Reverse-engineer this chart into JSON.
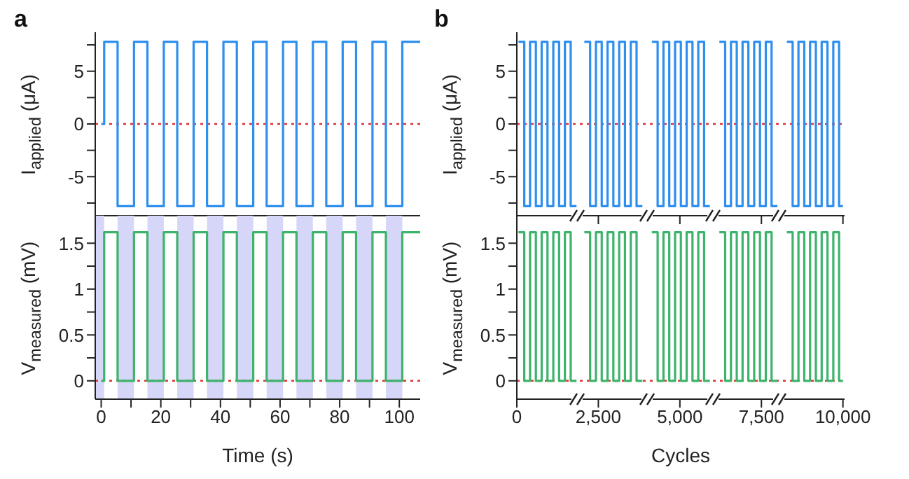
{
  "chart_data": [
    {
      "type": "step",
      "title": "a",
      "ylabel": "I$_{applied}$ (μA)",
      "tick_labels": "y",
      "x": [
        0,
        1,
        5.5,
        11,
        15.5,
        21,
        25.5,
        31,
        35.5,
        41,
        45.5,
        51,
        55.5,
        61,
        65.5,
        71,
        75.5,
        81,
        85.5,
        91,
        95.5,
        101,
        107
      ],
      "series": [
        {
          "color": "#2e8fef",
          "values": [
            0,
            7.8,
            -7.8,
            7.8,
            -7.8,
            7.8,
            -7.8,
            7.8,
            -7.8,
            7.8,
            -7.8,
            7.8,
            -7.8,
            7.8,
            -7.8,
            7.8,
            -7.8,
            7.8,
            -7.8,
            7.8,
            -7.8,
            7.8,
            7.8
          ]
        }
      ],
      "xlim": [
        -2,
        107
      ],
      "xticks": [
        0,
        {
          "value": 10,
          "label": null
        },
        20,
        {
          "value": 30,
          "label": null
        },
        40,
        {
          "value": 50,
          "label": null
        },
        60,
        {
          "value": 70,
          "label": null
        },
        80,
        {
          "value": 90,
          "label": null
        },
        100
      ],
      "ylim": [
        -8.7,
        8.7
      ],
      "yticks": [
        {
          "value": -7.5,
          "label": null
        },
        -5,
        {
          "value": -2.5,
          "label": null
        },
        0,
        {
          "value": 2.5,
          "label": null
        },
        5,
        {
          "value": 7.5,
          "label": null
        }
      ],
      "ref_lines": [
        {
          "axis": "y",
          "value": 0,
          "color": "#e03030",
          "line_style": "dotted"
        }
      ]
    },
    {
      "type": "step",
      "xlabel": "Time (s)",
      "ylabel": "V$_{measured}$ (mV)",
      "x": [
        0,
        1,
        5.5,
        11,
        15.5,
        21,
        25.5,
        31,
        35.5,
        41,
        45.5,
        51,
        55.5,
        61,
        65.5,
        71,
        75.5,
        81,
        85.5,
        91,
        95.5,
        101,
        107
      ],
      "series": [
        {
          "color": "#3db36b",
          "values": [
            0,
            1.62,
            0,
            1.62,
            0,
            1.62,
            0,
            1.62,
            0,
            1.62,
            0,
            1.62,
            0,
            1.62,
            0,
            1.62,
            0,
            1.62,
            0,
            1.62,
            0,
            1.62,
            1.62
          ]
        }
      ],
      "xlim": [
        -2,
        107
      ],
      "xticks": [
        0,
        {
          "value": 10,
          "label": null
        },
        20,
        {
          "value": 30,
          "label": null
        },
        40,
        {
          "value": 50,
          "label": null
        },
        60,
        {
          "value": 70,
          "label": null
        },
        80,
        {
          "value": 90,
          "label": null
        },
        100
      ],
      "ylim": [
        -0.2,
        1.8
      ],
      "yticks": [
        0,
        {
          "value": 0.25,
          "label": null
        },
        0.5,
        {
          "value": 0.75,
          "label": null
        },
        1.0,
        {
          "value": 1.25,
          "label": null
        },
        1.5
      ],
      "bands": [
        {
          "axis": "x",
          "from": -2,
          "to": 1,
          "color": "#d6d6f8"
        },
        {
          "axis": "x",
          "from": 5.5,
          "to": 11,
          "color": "#d6d6f8"
        },
        {
          "axis": "x",
          "from": 15.5,
          "to": 21,
          "color": "#d6d6f8"
        },
        {
          "axis": "x",
          "from": 25.5,
          "to": 31,
          "color": "#d6d6f8"
        },
        {
          "axis": "x",
          "from": 35.5,
          "to": 41,
          "color": "#d6d6f8"
        },
        {
          "axis": "x",
          "from": 45.5,
          "to": 51,
          "color": "#d6d6f8"
        },
        {
          "axis": "x",
          "from": 55.5,
          "to": 61,
          "color": "#d6d6f8"
        },
        {
          "axis": "x",
          "from": 65.5,
          "to": 71,
          "color": "#d6d6f8"
        },
        {
          "axis": "x",
          "from": 75.5,
          "to": 81,
          "color": "#d6d6f8"
        },
        {
          "axis": "x",
          "from": 85.5,
          "to": 91,
          "color": "#d6d6f8"
        },
        {
          "axis": "x",
          "from": 95.5,
          "to": 101,
          "color": "#d6d6f8"
        }
      ],
      "ref_lines": [
        {
          "axis": "y",
          "value": 0,
          "color": "#e03030",
          "line_style": "dotted"
        }
      ]
    },
    {
      "type": "step",
      "title": "b",
      "ylabel": "I$_{applied}$ (μA)",
      "tick_labels": "y",
      "x": [
        50,
        228,
        406,
        584,
        762,
        940,
        1118,
        1296,
        1474,
        1652,
        1830,
        1860,
        2070,
        2248,
        2426,
        2604,
        2782,
        2960,
        3138,
        3316,
        3494,
        3672,
        3850,
        3990,
        4140,
        4318,
        4496,
        4674,
        4852,
        5030,
        5208,
        5386,
        5564,
        5742,
        5920,
        6030,
        6210,
        6388,
        6566,
        6744,
        6922,
        7100,
        7278,
        7456,
        7634,
        7812,
        7990,
        8040,
        8280,
        8458,
        8636,
        8814,
        8992,
        9170,
        9348,
        9526,
        9704,
        9882,
        10000
      ],
      "series": [
        {
          "color": "#2e8fef",
          "values": [
            7.8,
            -7.8,
            7.8,
            -7.8,
            7.8,
            -7.8,
            7.8,
            -7.8,
            7.8,
            -7.8,
            -7.8,
            null,
            7.8,
            -7.8,
            7.8,
            -7.8,
            7.8,
            -7.8,
            7.8,
            -7.8,
            7.8,
            -7.8,
            -7.8,
            null,
            7.8,
            -7.8,
            7.8,
            -7.8,
            7.8,
            -7.8,
            7.8,
            -7.8,
            7.8,
            -7.8,
            -7.8,
            null,
            7.8,
            -7.8,
            7.8,
            -7.8,
            7.8,
            -7.8,
            7.8,
            -7.8,
            7.8,
            -7.8,
            -7.8,
            null,
            7.8,
            -7.8,
            7.8,
            -7.8,
            7.8,
            -7.8,
            7.8,
            -7.8,
            7.8,
            -7.8,
            -7.8
          ]
        }
      ],
      "xlim": [
        0,
        10050
      ],
      "xticks": [
        0,
        2500,
        5000,
        7500,
        10000
      ],
      "ylim": [
        -8.7,
        8.7
      ],
      "yticks": [
        {
          "value": -7.5,
          "label": null
        },
        -5,
        {
          "value": -2.5,
          "label": null
        },
        0,
        {
          "value": 2.5,
          "label": null
        },
        5,
        {
          "value": 7.5,
          "label": null
        }
      ],
      "ref_lines": [
        {
          "axis": "y",
          "value": 0,
          "color": "#e03030",
          "line_style": "dotted"
        }
      ]
    },
    {
      "type": "step",
      "xlabel": "Cycles",
      "ylabel": "V$_{measured}$ (mV)",
      "x": [
        50,
        228,
        406,
        584,
        762,
        940,
        1118,
        1296,
        1474,
        1652,
        1830,
        1860,
        2070,
        2248,
        2426,
        2604,
        2782,
        2960,
        3138,
        3316,
        3494,
        3672,
        3850,
        3990,
        4140,
        4318,
        4496,
        4674,
        4852,
        5030,
        5208,
        5386,
        5564,
        5742,
        5920,
        6030,
        6210,
        6388,
        6566,
        6744,
        6922,
        7100,
        7278,
        7456,
        7634,
        7812,
        7990,
        8040,
        8280,
        8458,
        8636,
        8814,
        8992,
        9170,
        9348,
        9526,
        9704,
        9882,
        10000
      ],
      "series": [
        {
          "color": "#3db36b",
          "values": [
            1.62,
            0,
            1.62,
            0,
            1.62,
            0,
            1.62,
            0,
            1.62,
            0,
            0,
            null,
            1.62,
            0,
            1.62,
            0,
            1.62,
            0,
            1.62,
            0,
            1.62,
            0,
            0,
            null,
            1.62,
            0,
            1.62,
            0,
            1.62,
            0,
            1.62,
            0,
            1.62,
            0,
            0,
            null,
            1.62,
            0,
            1.62,
            0,
            1.62,
            0,
            1.62,
            0,
            1.62,
            0,
            0,
            null,
            1.62,
            0,
            1.62,
            0,
            1.62,
            0,
            1.62,
            0,
            1.62,
            0,
            0
          ]
        }
      ],
      "xlim": [
        0,
        10050
      ],
      "xticks": [
        0,
        {
          "value": 2500,
          "label": "2,500"
        },
        {
          "value": 5000,
          "label": "5,000"
        },
        {
          "value": 7500,
          "label": "7,500"
        },
        {
          "value": 10000,
          "label": "10,000"
        }
      ],
      "ylim": [
        -0.2,
        1.8
      ],
      "yticks": [
        0,
        {
          "value": 0.25,
          "label": null
        },
        0.5,
        {
          "value": 0.75,
          "label": null
        },
        1.0,
        {
          "value": 1.25,
          "label": null
        },
        1.5
      ],
      "ref_lines": [
        {
          "axis": "y",
          "value": 0,
          "color": "#e03030",
          "line_style": "dotted"
        }
      ]
    }
  ]
}
